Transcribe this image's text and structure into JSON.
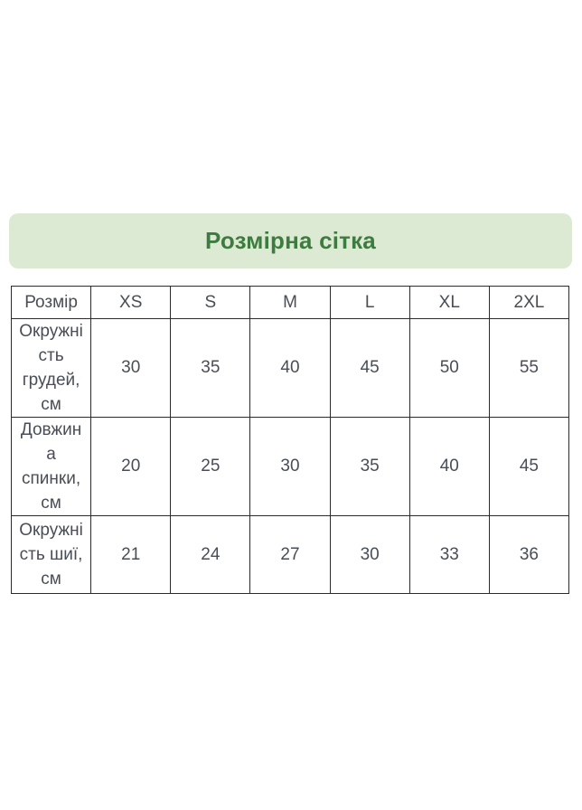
{
  "banner": {
    "title": "Розмірна сітка",
    "background_color": "#dcead3",
    "text_color": "#3e7b40"
  },
  "size_table": {
    "columns": [
      "Розмір",
      "XS",
      "S",
      "M",
      "L",
      "XL",
      "2XL"
    ],
    "rows": [
      {
        "label": "Окружні\nсть\nгрудей,\nсм",
        "values": [
          "30",
          "35",
          "40",
          "45",
          "50",
          "55"
        ]
      },
      {
        "label": "Довжин\nа\nспинки,\nсм",
        "values": [
          "20",
          "25",
          "30",
          "35",
          "40",
          "45"
        ]
      },
      {
        "label": "Окружні\nсть шиї,\nсм",
        "values": [
          "21",
          "24",
          "27",
          "30",
          "33",
          "36"
        ]
      }
    ],
    "text_color": "#494d56",
    "border_color": "#2b2b2b"
  },
  "chart_data": {
    "type": "table",
    "title": "Розмірна сітка",
    "columns": [
      "Розмір",
      "XS",
      "S",
      "M",
      "L",
      "XL",
      "2XL"
    ],
    "rows": [
      {
        "label": "Окружність грудей, см",
        "values": [
          30,
          35,
          40,
          45,
          50,
          55
        ]
      },
      {
        "label": "Довжина спинки, см",
        "values": [
          20,
          25,
          30,
          35,
          40,
          45
        ]
      },
      {
        "label": "Окружність шиї, см",
        "values": [
          21,
          24,
          27,
          30,
          33,
          36
        ]
      }
    ]
  }
}
